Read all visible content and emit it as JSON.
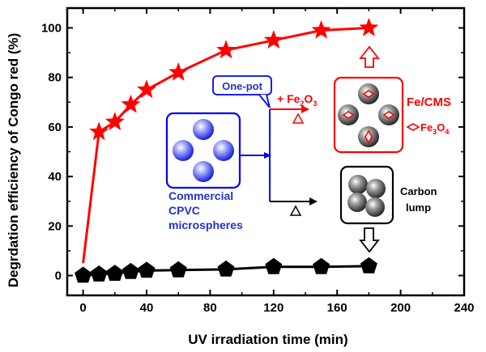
{
  "chart_data": {
    "type": "line",
    "xlabel": "UV irradiation time (min)",
    "ylabel": "Degrdation efficiency of Congo red (%)",
    "xlim": [
      -10,
      240
    ],
    "ylim": [
      -8,
      108
    ],
    "xticks": [
      0,
      40,
      80,
      120,
      160,
      200,
      240
    ],
    "yticks": [
      0,
      20,
      40,
      60,
      80,
      100
    ],
    "grid": false,
    "series": [
      {
        "marker": "star",
        "color": "#ff0000",
        "x": [
          0,
          10,
          20,
          30,
          40,
          60,
          90,
          120,
          150,
          180
        ],
        "y": [
          5,
          58,
          62,
          69,
          75,
          82,
          91,
          95,
          99,
          100
        ]
      },
      {
        "marker": "pentagon",
        "color": "#000000",
        "x": [
          0,
          10,
          20,
          30,
          40,
          60,
          90,
          120,
          150,
          180
        ],
        "y": [
          0,
          0.5,
          0.8,
          1.5,
          2,
          2.2,
          2.5,
          3.5,
          3.5,
          3.8
        ]
      }
    ],
    "annotations": {
      "one_pot": "One-pot",
      "fe2o3_prefix": "+ Fe",
      "fe2o3_sub1": "2",
      "fe2o3_mid": "O",
      "fe2o3_sub2": "3",
      "fecms": "Fe/CMS",
      "fe3o4_prefix": "Fe",
      "fe3o4_sub1": "3",
      "fe3o4_mid": "O",
      "fe3o4_sub2": "4",
      "commercial_line1": "Commercial",
      "commercial_line2": "CPVC",
      "commercial_line3": "microspheres",
      "carbon_line1": "Carbon",
      "carbon_line2": "lump"
    },
    "colors": {
      "red": "#ff0000",
      "blue": "#0000ff",
      "black": "#000000"
    }
  }
}
